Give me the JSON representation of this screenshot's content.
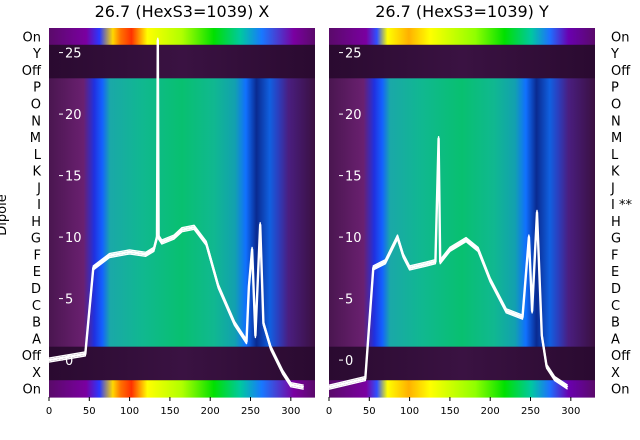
{
  "chart_data": [
    {
      "type": "heatmap",
      "title": "26.7 (HexS3=1039) X",
      "ylabel": "Dipole",
      "x_ticks": [
        "0",
        "50",
        "100",
        "150",
        "200",
        "250",
        "300"
      ],
      "xlim": [
        0,
        330
      ],
      "row_labels": [
        "On",
        "Y",
        "Off",
        "P",
        "O",
        "N",
        "M",
        "L",
        "K",
        "J",
        "I",
        "H",
        "G",
        "F",
        "E",
        "D",
        "C",
        "B",
        "A",
        "Off",
        "X",
        "On"
      ],
      "overlay_ticks": [
        "25",
        "20",
        "15",
        "10",
        "5",
        "0"
      ],
      "overlay_ylim": [
        -3,
        27
      ],
      "overlay": [
        [
          0,
          0
        ],
        [
          45,
          0.5
        ],
        [
          55,
          7.5
        ],
        [
          75,
          8.5
        ],
        [
          100,
          8.8
        ],
        [
          120,
          8.6
        ],
        [
          130,
          9
        ],
        [
          134,
          10
        ],
        [
          135,
          26
        ],
        [
          136,
          10
        ],
        [
          140,
          9.6
        ],
        [
          155,
          10
        ],
        [
          165,
          10.6
        ],
        [
          180,
          10.8
        ],
        [
          195,
          9.5
        ],
        [
          210,
          6
        ],
        [
          230,
          3
        ],
        [
          245,
          1.5
        ],
        [
          248,
          6
        ],
        [
          252,
          9
        ],
        [
          256,
          2
        ],
        [
          262,
          11
        ],
        [
          266,
          3
        ],
        [
          275,
          1
        ],
        [
          290,
          -1
        ],
        [
          300,
          -2
        ],
        [
          316,
          -2.2
        ]
      ]
    },
    {
      "type": "heatmap",
      "title": "26.7 (HexS3=1039) Y",
      "x_ticks": [
        "0",
        "50",
        "100",
        "150",
        "200",
        "250",
        "300"
      ],
      "xlim": [
        0,
        330
      ],
      "row_labels": [
        "On",
        "Y",
        "Off",
        "P",
        "O",
        "N",
        "M",
        "L",
        "K",
        "J",
        "I **",
        "H",
        "G",
        "F",
        "E",
        "D",
        "C",
        "B",
        "A",
        "Off",
        "X",
        "On"
      ],
      "overlay_ticks": [
        "25",
        "20",
        "15",
        "10",
        "5",
        "0"
      ],
      "overlay_ylim": [
        -3,
        27
      ],
      "overlay": [
        [
          0,
          -2.2
        ],
        [
          45,
          -1.5
        ],
        [
          55,
          7.5
        ],
        [
          70,
          8
        ],
        [
          85,
          10
        ],
        [
          92,
          8.5
        ],
        [
          100,
          7.5
        ],
        [
          120,
          7.8
        ],
        [
          132,
          8
        ],
        [
          136,
          18
        ],
        [
          138,
          8
        ],
        [
          150,
          9
        ],
        [
          170,
          9.8
        ],
        [
          185,
          9
        ],
        [
          200,
          6.5
        ],
        [
          220,
          4
        ],
        [
          240,
          3.5
        ],
        [
          248,
          10
        ],
        [
          252,
          4
        ],
        [
          258,
          12
        ],
        [
          264,
          2
        ],
        [
          270,
          -0.5
        ],
        [
          280,
          -1.5
        ],
        [
          296,
          -2.2
        ]
      ]
    }
  ]
}
